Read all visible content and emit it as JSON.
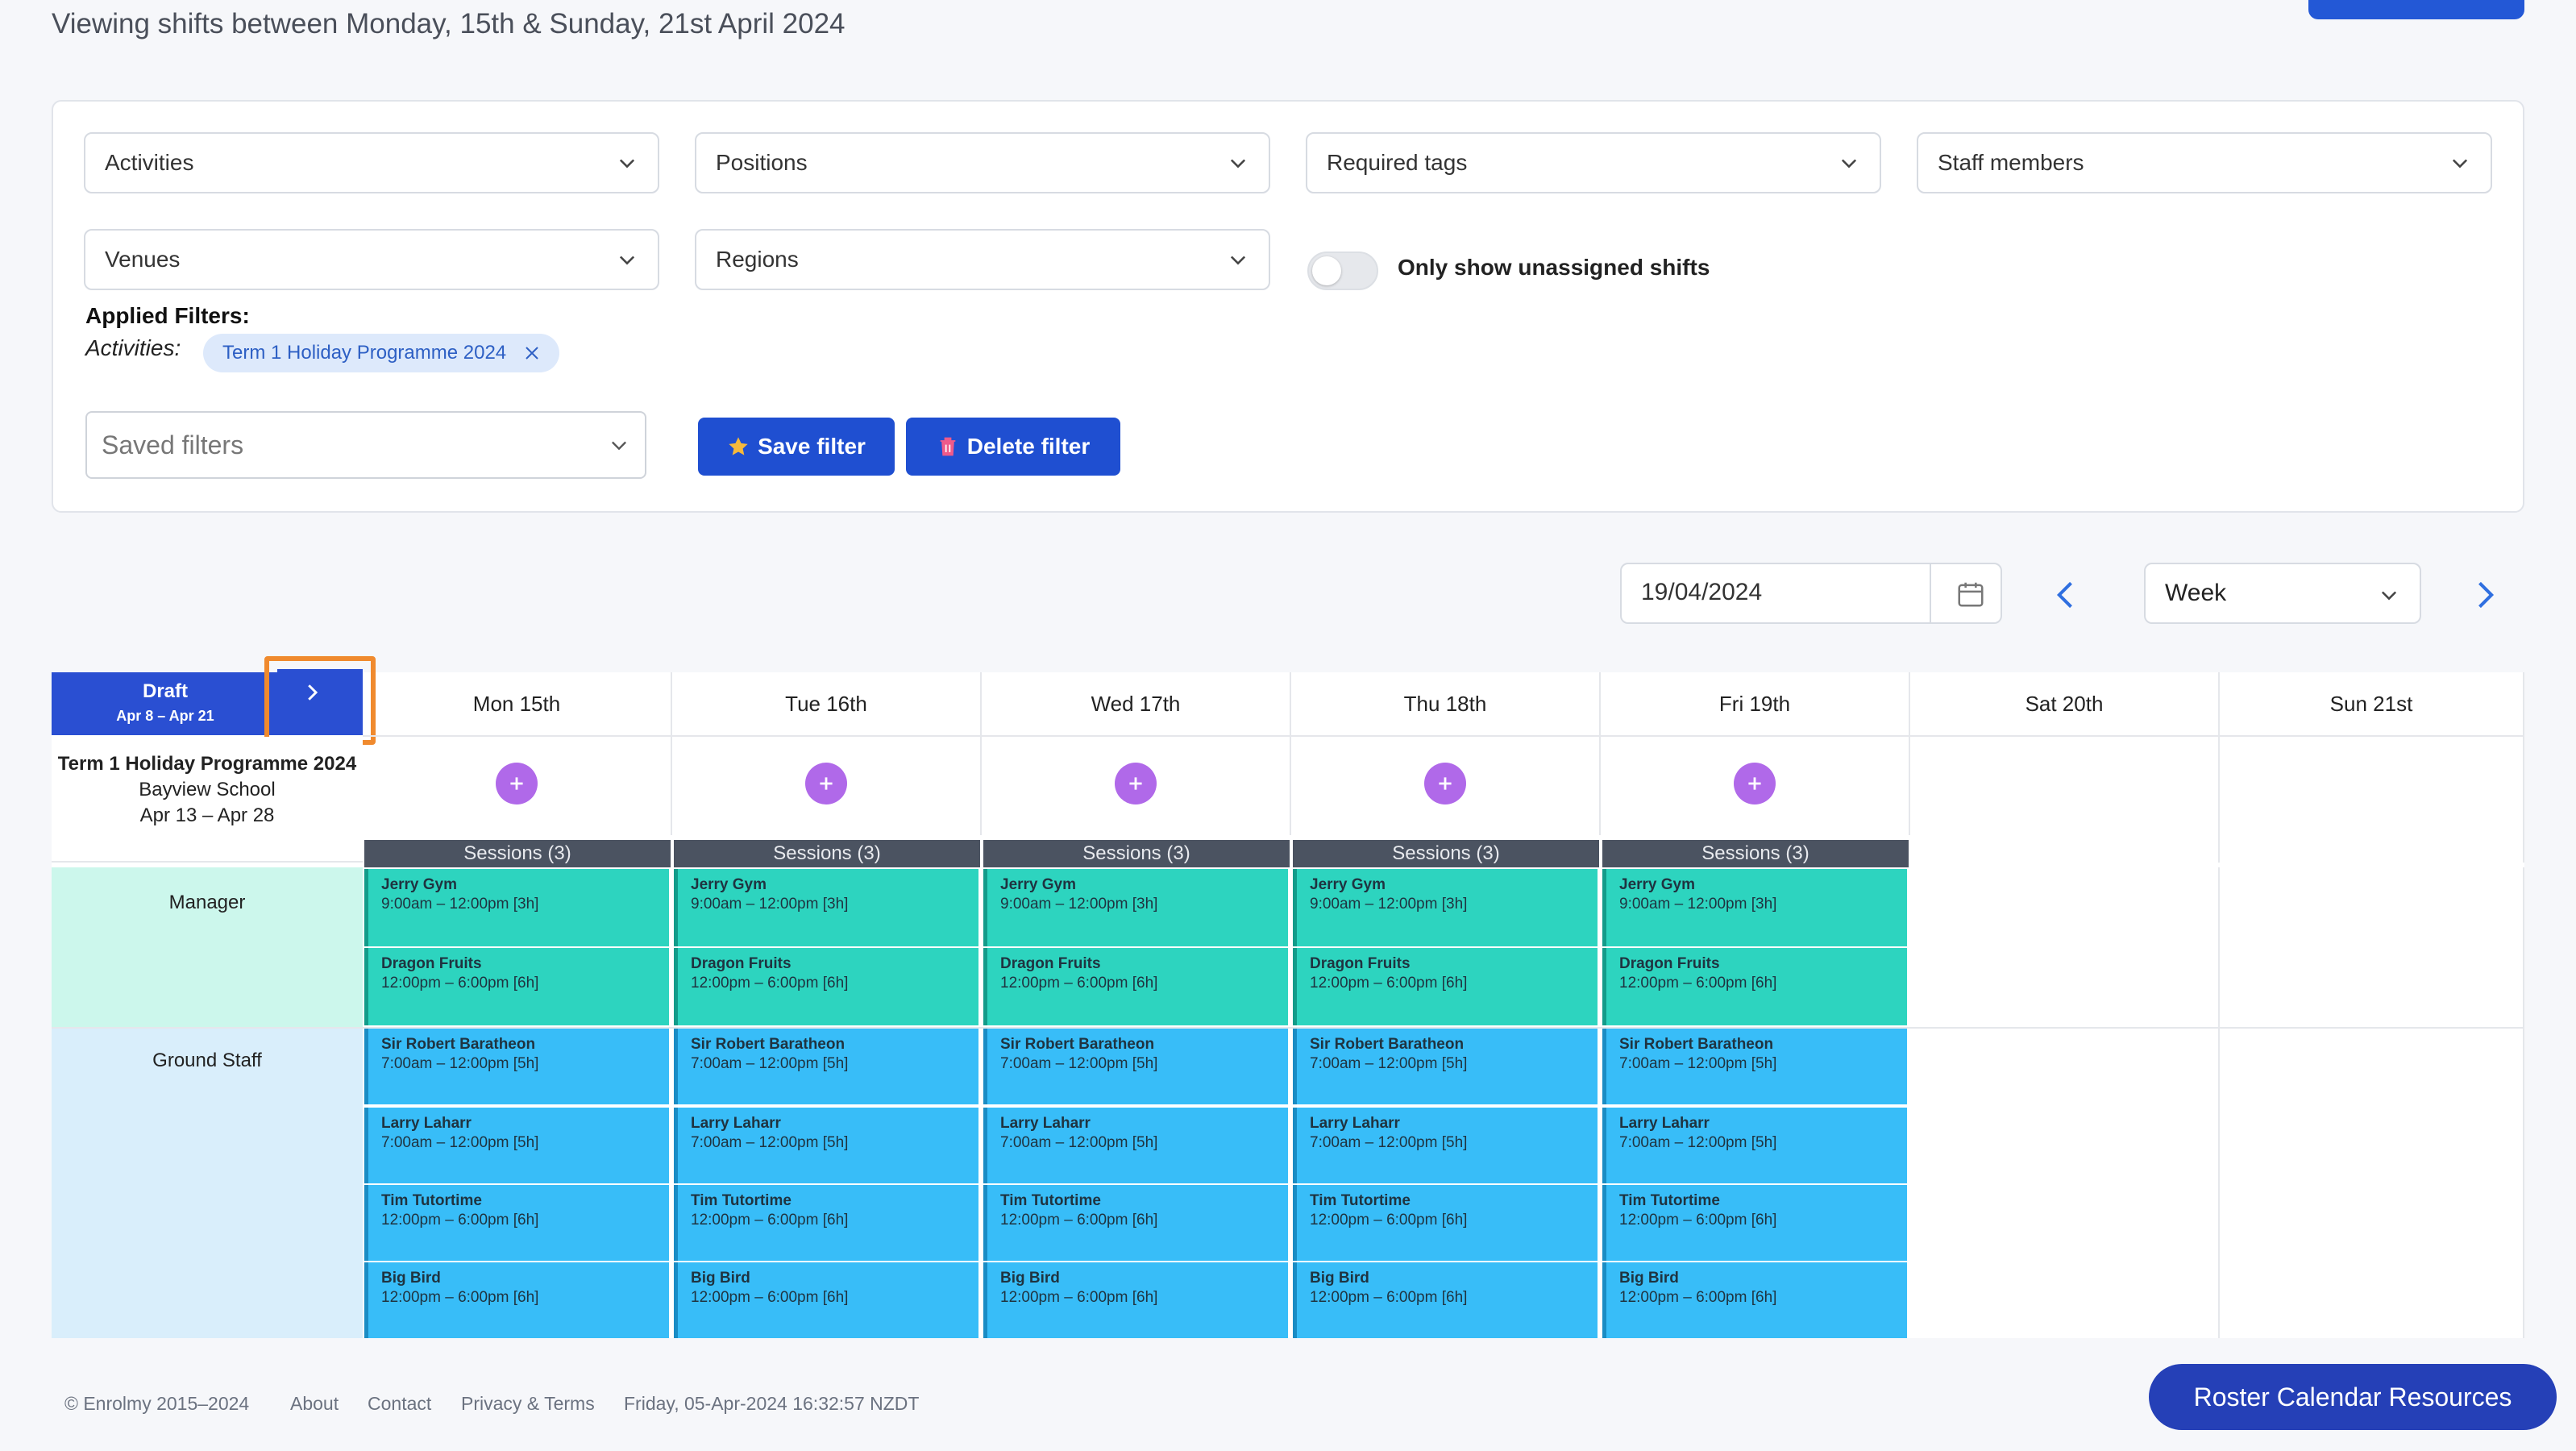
{
  "header": {
    "title": "Viewing shifts between Monday, 15th & Sunday, 21st April 2024"
  },
  "filters": {
    "activities": "Activities",
    "positions": "Positions",
    "required_tags": "Required tags",
    "staff_members": "Staff members",
    "venues": "Venues",
    "regions": "Regions",
    "unassigned_toggle_label": "Only show unassigned shifts",
    "applied_title": "Applied Filters:",
    "applied_key": "Activities:",
    "applied_chip": "Term 1 Holiday Programme 2024",
    "saved_placeholder": "Saved filters",
    "save_label": "Save filter",
    "delete_label": "Delete filter"
  },
  "toolbar": {
    "date": "19/04/2024",
    "view": "Week"
  },
  "calendar": {
    "draft_title": "Draft",
    "draft_range": "Apr 8 – Apr 21",
    "days": [
      "Mon 15th",
      "Tue 16th",
      "Wed 17th",
      "Thu 18th",
      "Fri 19th",
      "Sat 20th",
      "Sun 21st"
    ],
    "activity": {
      "name": "Term 1 Holiday Programme 2024",
      "venue": "Bayview School",
      "range": "Apr 13 – Apr 28"
    },
    "sessions_label": "Sessions (3)",
    "positions": [
      "Manager",
      "Ground Staff"
    ],
    "manager_shifts": [
      {
        "name": "Jerry Gym",
        "time": "9:00am – 12:00pm [3h]"
      },
      {
        "name": "Dragon Fruits",
        "time": "12:00pm – 6:00pm [6h]"
      }
    ],
    "ground_shifts": [
      {
        "name": "Sir Robert Baratheon",
        "time": "7:00am – 12:00pm [5h]"
      },
      {
        "name": "Larry Laharr",
        "time": "7:00am – 12:00pm [5h]"
      },
      {
        "name": "Tim Tutortime",
        "time": "12:00pm – 6:00pm [6h]"
      },
      {
        "name": "Big Bird",
        "time": "12:00pm – 6:00pm [6h]"
      }
    ]
  },
  "footer": {
    "copyright": "© Enrolmy 2015–2024",
    "about": "About",
    "contact": "Contact",
    "privacy": "Privacy & Terms",
    "timestamp": "Friday, 05-Apr-2024 16:32:57 NZDT"
  },
  "fab_label": "Roster Calendar Resources"
}
